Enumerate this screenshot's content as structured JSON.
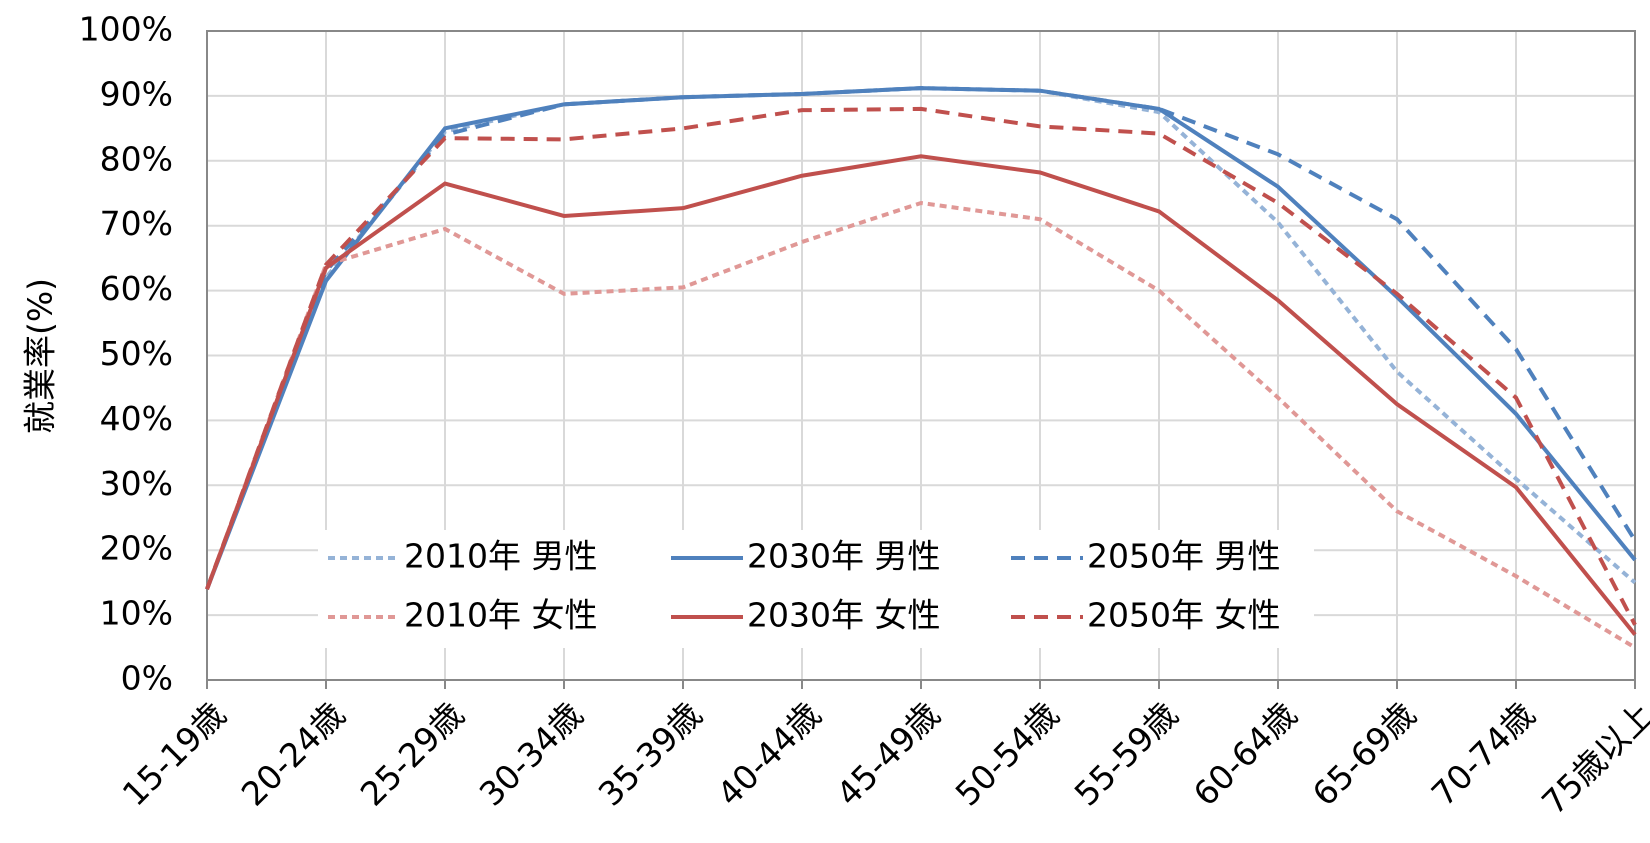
{
  "chart_data": {
    "type": "line",
    "y_label": "就業率(%)",
    "categories": [
      "15-19歳",
      "20-24歳",
      "25-29歳",
      "30-34歳",
      "35-39歳",
      "40-44歳",
      "45-49歳",
      "50-54歳",
      "55-59歳",
      "60-64歳",
      "65-69歳",
      "70-74歳",
      "75歳以上"
    ],
    "ylim": [
      0,
      100
    ],
    "yticks": [
      {
        "value": 0,
        "label": "0%"
      },
      {
        "value": 10,
        "label": "10%"
      },
      {
        "value": 20,
        "label": "20%"
      },
      {
        "value": 30,
        "label": "30%"
      },
      {
        "value": 40,
        "label": "40%"
      },
      {
        "value": 50,
        "label": "50%"
      },
      {
        "value": 60,
        "label": "60%"
      },
      {
        "value": 70,
        "label": "70%"
      },
      {
        "value": 80,
        "label": "80%"
      },
      {
        "value": 90,
        "label": "90%"
      },
      {
        "value": 100,
        "label": "100%"
      }
    ],
    "grid": true,
    "series": [
      {
        "name": "2010年 男性",
        "color": "#95b3d7",
        "dash": "short",
        "values": [
          14,
          62,
          84.5,
          88.7,
          89.8,
          90.3,
          91.2,
          90.8,
          87.5,
          70.5,
          47.5,
          31,
          15
        ]
      },
      {
        "name": "2030年 男性",
        "color": "#4f81bd",
        "dash": "solid",
        "values": [
          14,
          61.5,
          85,
          88.7,
          89.8,
          90.3,
          91.2,
          90.8,
          88,
          76,
          59,
          41,
          18.5
        ]
      },
      {
        "name": "2050年 男性",
        "color": "#4f81bd",
        "dash": "long",
        "values": [
          14,
          63,
          84,
          88.7,
          89.8,
          90.3,
          91.2,
          90.8,
          88,
          81,
          71,
          51,
          21.5
        ]
      },
      {
        "name": "2010年 女性",
        "color": "#e09896",
        "dash": "short",
        "values": [
          14,
          64,
          69.5,
          59.5,
          60.5,
          67.5,
          73.5,
          71,
          60,
          43.5,
          26,
          16,
          5
        ]
      },
      {
        "name": "2030年 女性",
        "color": "#c0504d",
        "dash": "solid",
        "values": [
          14,
          63.5,
          76.5,
          71.5,
          72.7,
          77.7,
          80.7,
          78.2,
          72.2,
          58.5,
          42.5,
          29.7,
          7
        ]
      },
      {
        "name": "2050年 女性",
        "color": "#c0504d",
        "dash": "long",
        "values": [
          14,
          64,
          83.5,
          83.3,
          85,
          87.8,
          88,
          85.3,
          84.2,
          73.5,
          59.5,
          43.5,
          8.5
        ]
      }
    ]
  }
}
